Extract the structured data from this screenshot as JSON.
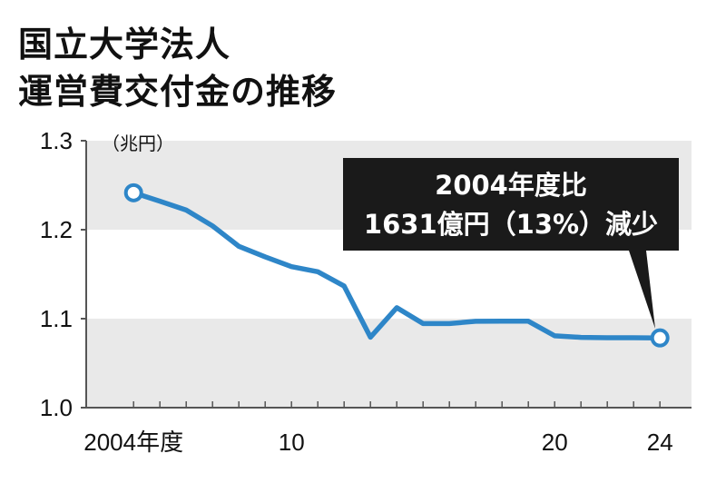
{
  "title_line1": "国立大学法人",
  "title_line2": "運営費交付金の推移",
  "unit": "（兆円）",
  "annotation": {
    "line1": "2004年度比",
    "line2": "1631億円（13%）減少"
  },
  "colors": {
    "line": "#2e86c8",
    "band": "#e9e9e9",
    "annotation_bg": "#1a1a1a"
  },
  "chart_data": {
    "type": "line",
    "x": [
      2004,
      2005,
      2006,
      2007,
      2008,
      2009,
      2010,
      2011,
      2012,
      2013,
      2014,
      2015,
      2016,
      2017,
      2018,
      2019,
      2020,
      2021,
      2022,
      2023,
      2024
    ],
    "values": [
      1.2415,
      1.232,
      1.222,
      1.2043,
      1.1813,
      1.1695,
      1.1585,
      1.1528,
      1.1366,
      1.0792,
      1.1123,
      1.0945,
      1.0945,
      1.097,
      1.0971,
      1.0971,
      1.0807,
      1.079,
      1.0786,
      1.0786,
      1.0784
    ],
    "x_tick_labels": [
      {
        "x": 2004,
        "label": "2004年度"
      },
      {
        "x": 2010,
        "label": "10"
      },
      {
        "x": 2020,
        "label": "20"
      },
      {
        "x": 2024,
        "label": "24"
      }
    ],
    "y_ticks": [
      {
        "value": 1.0,
        "label": "1.0"
      },
      {
        "value": 1.1,
        "label": "1.1"
      },
      {
        "value": 1.2,
        "label": "1.2"
      },
      {
        "value": 1.3,
        "label": "1.3"
      }
    ],
    "ylim": [
      1.0,
      1.3
    ],
    "xlim": [
      2002.2,
      2025.2
    ],
    "markers_at": [
      2004,
      2024
    ],
    "grid": "alternating horizontal bands"
  }
}
